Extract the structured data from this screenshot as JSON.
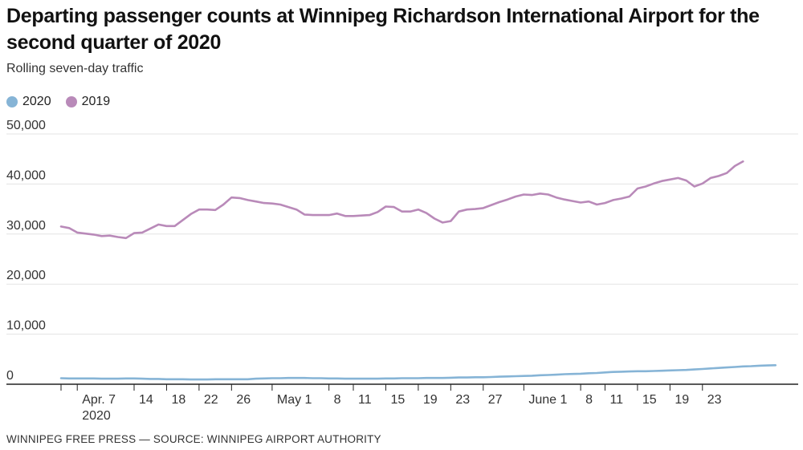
{
  "title": "Departing passenger counts at Winnipeg Richardson International Airport for the second quarter of 2020",
  "subtitle": "Rolling seven-day traffic",
  "footer": "WINNIPEG FREE PRESS — SOURCE: WINNIPEG AIRPORT AUTHORITY",
  "colors": {
    "s2020": "#86b4d6",
    "s2019": "#b98ab9",
    "grid": "#e3e3e3",
    "axis": "#222222"
  },
  "chart_data": {
    "type": "line",
    "title": "Departing passenger counts at Winnipeg Richardson International Airport for the second quarter of 2020",
    "subtitle": "Rolling seven-day traffic",
    "xlabel": "",
    "ylabel": "",
    "ylim": [
      0,
      50000
    ],
    "yticks": [
      0,
      10000,
      20000,
      30000,
      40000,
      50000
    ],
    "ytick_labels": [
      "0",
      "10,000",
      "20,000",
      "30,000",
      "40,000",
      "50,000"
    ],
    "xlim": [
      0,
      90
    ],
    "grid": true,
    "legend": "top-left",
    "xtick_labels": [
      {
        "day": 2,
        "label": "Apr. 7",
        "sub": "2020"
      },
      {
        "day": 9,
        "label": "14"
      },
      {
        "day": 13,
        "label": "18"
      },
      {
        "day": 17,
        "label": "22"
      },
      {
        "day": 21,
        "label": "26"
      },
      {
        "day": 26,
        "label": "May 1"
      },
      {
        "day": 33,
        "label": "8"
      },
      {
        "day": 36,
        "label": "11"
      },
      {
        "day": 40,
        "label": "15"
      },
      {
        "day": 44,
        "label": "19"
      },
      {
        "day": 48,
        "label": "23"
      },
      {
        "day": 52,
        "label": "27"
      },
      {
        "day": 57,
        "label": "June 1"
      },
      {
        "day": 64,
        "label": "8"
      },
      {
        "day": 67,
        "label": "11"
      },
      {
        "day": 71,
        "label": "15"
      },
      {
        "day": 75,
        "label": "19"
      },
      {
        "day": 79,
        "label": "23"
      }
    ],
    "series": [
      {
        "name": "2020",
        "start_day": 0,
        "values": [
          1200,
          1150,
          1150,
          1150,
          1150,
          1100,
          1100,
          1100,
          1150,
          1150,
          1100,
          1050,
          1050,
          1000,
          1000,
          1000,
          950,
          950,
          950,
          1000,
          1000,
          1000,
          1000,
          1000,
          1100,
          1150,
          1200,
          1200,
          1250,
          1250,
          1250,
          1200,
          1200,
          1150,
          1150,
          1100,
          1100,
          1100,
          1100,
          1100,
          1150,
          1150,
          1200,
          1200,
          1200,
          1250,
          1250,
          1250,
          1300,
          1350,
          1350,
          1400,
          1400,
          1450,
          1500,
          1550,
          1600,
          1650,
          1700,
          1800,
          1850,
          1900,
          2000,
          2050,
          2100,
          2200,
          2250,
          2350,
          2450,
          2500,
          2550,
          2600,
          2600,
          2650,
          2700,
          2750,
          2800,
          2850,
          2950,
          3050,
          3150,
          3250,
          3350,
          3450,
          3550,
          3600,
          3700,
          3750,
          3800
        ]
      },
      {
        "name": "2019",
        "start_day": 0,
        "values": [
          31500,
          31200,
          30300,
          30100,
          29900,
          29600,
          29700,
          29400,
          29200,
          30200,
          30300,
          31100,
          31900,
          31600,
          31600,
          32800,
          34000,
          34900,
          34900,
          34800,
          35900,
          37300,
          37200,
          36800,
          36500,
          36200,
          36100,
          35900,
          35400,
          34900,
          33900,
          33800,
          33800,
          33800,
          34100,
          33600,
          33600,
          33700,
          33800,
          34400,
          35500,
          35400,
          34500,
          34500,
          34900,
          34200,
          33100,
          32300,
          32600,
          34500,
          34900,
          35000,
          35200,
          35800,
          36400,
          36900,
          37500,
          37900,
          37800,
          38100,
          37900,
          37300,
          36900,
          36600,
          36300,
          36500,
          35900,
          36200,
          36800,
          37100,
          37500,
          39100,
          39500,
          40100,
          40600,
          40900,
          41200,
          40700,
          39500,
          40100,
          41200,
          41600,
          42200,
          43600,
          44500
        ]
      }
    ]
  }
}
